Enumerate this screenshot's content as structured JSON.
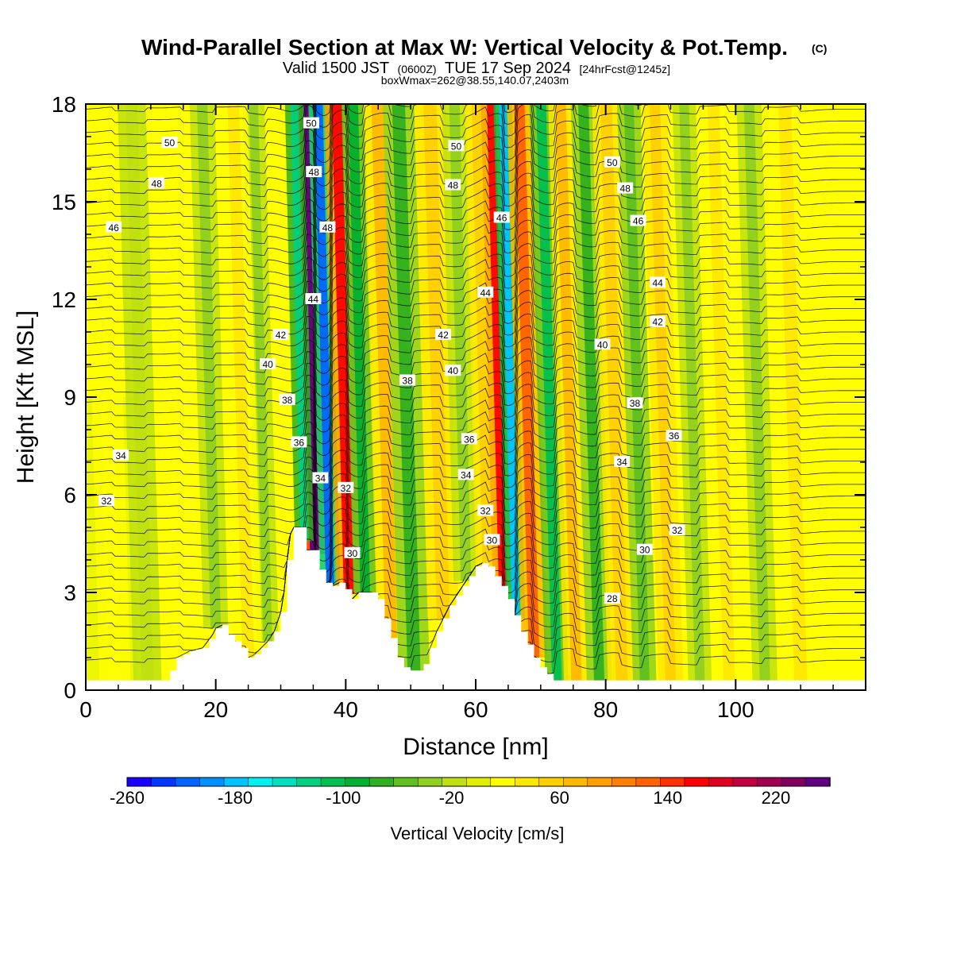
{
  "header": {
    "title": "Wind-Parallel Section at Max W: Vertical Velocity & Pot.Temp.",
    "copyright": "(C)",
    "valid_prefix": "Valid 1500 JST",
    "valid_utc": "(0600Z)",
    "valid_date": "TUE 17 Sep 2024",
    "forecast": "[24hrFcst@1245z]",
    "boxwmax": "boxWmax=262@38.55,140.07,2403m"
  },
  "chart_data": {
    "type": "heatmap",
    "title": "Wind-Parallel Section at Max W: Vertical Velocity & Pot.Temp.",
    "xlabel": "Distance [nm]",
    "ylabel": "Height [Kft MSL]",
    "xlim": [
      0,
      120
    ],
    "ylim": [
      0,
      18
    ],
    "x_ticks": [
      "0",
      "20",
      "40",
      "60",
      "80",
      "100"
    ],
    "y_ticks": [
      "0",
      "3",
      "6",
      "9",
      "12",
      "15",
      "18"
    ],
    "terrain_kft": [
      [
        0,
        0.3
      ],
      [
        4,
        0.3
      ],
      [
        8,
        0.3
      ],
      [
        12,
        0.3
      ],
      [
        13,
        0.6
      ],
      [
        14,
        1.0
      ],
      [
        16,
        1.2
      ],
      [
        18,
        1.3
      ],
      [
        19.5,
        1.7
      ],
      [
        20,
        1.9
      ],
      [
        21,
        2.0
      ],
      [
        22,
        1.7
      ],
      [
        23,
        1.5
      ],
      [
        24,
        1.3
      ],
      [
        25,
        1.0
      ],
      [
        26,
        1.1
      ],
      [
        27,
        1.3
      ],
      [
        28,
        1.5
      ],
      [
        29,
        1.8
      ],
      [
        30,
        2.4
      ],
      [
        30.5,
        3.0
      ],
      [
        31,
        4.0
      ],
      [
        31.5,
        4.8
      ],
      [
        32,
        5.0
      ],
      [
        33,
        5.0
      ],
      [
        34,
        4.3
      ],
      [
        35,
        4.3
      ],
      [
        36,
        3.7
      ],
      [
        37,
        3.3
      ],
      [
        38,
        3.2
      ],
      [
        39,
        3.3
      ],
      [
        40,
        3.1
      ],
      [
        41,
        2.8
      ],
      [
        42,
        3.0
      ],
      [
        43,
        3.0
      ],
      [
        44,
        3.0
      ],
      [
        45,
        2.8
      ],
      [
        46,
        2.2
      ],
      [
        47,
        1.6
      ],
      [
        48,
        1.0
      ],
      [
        49,
        0.7
      ],
      [
        50,
        0.6
      ],
      [
        51,
        0.6
      ],
      [
        52,
        0.8
      ],
      [
        53,
        1.3
      ],
      [
        54,
        1.8
      ],
      [
        55,
        2.2
      ],
      [
        56,
        2.6
      ],
      [
        57,
        2.9
      ],
      [
        58,
        3.2
      ],
      [
        59,
        3.5
      ],
      [
        60,
        3.8
      ],
      [
        61,
        3.9
      ],
      [
        62,
        3.8
      ],
      [
        63,
        3.5
      ],
      [
        64,
        3.2
      ],
      [
        65,
        2.8
      ],
      [
        66,
        2.3
      ],
      [
        67,
        1.8
      ],
      [
        68,
        1.4
      ],
      [
        69,
        1.0
      ],
      [
        70,
        0.7
      ],
      [
        71,
        0.5
      ],
      [
        72,
        0.3
      ],
      [
        80,
        0.3
      ],
      [
        90,
        0.3
      ],
      [
        100,
        0.3
      ],
      [
        110,
        0.3
      ],
      [
        120,
        0.3
      ]
    ],
    "vertical_velocity_bands": [
      {
        "x": 35.2,
        "width": 1.4,
        "w": 255
      },
      {
        "x": 37.6,
        "width": 1.3,
        "w": -220
      },
      {
        "x": 33.6,
        "width": 1.2,
        "w": -120
      },
      {
        "x": 40.5,
        "width": 1.6,
        "w": 170
      },
      {
        "x": 43.0,
        "width": 1.5,
        "w": -90
      },
      {
        "x": 47.0,
        "width": 1.8,
        "w": 70
      },
      {
        "x": 50.5,
        "width": 2.0,
        "w": -70
      },
      {
        "x": 55.0,
        "width": 2.0,
        "w": 50
      },
      {
        "x": 58.5,
        "width": 1.6,
        "w": -40
      },
      {
        "x": 61.8,
        "width": 1.5,
        "w": 60
      },
      {
        "x": 64.2,
        "width": 1.3,
        "w": 170
      },
      {
        "x": 66.2,
        "width": 1.2,
        "w": -180
      },
      {
        "x": 69.0,
        "width": 1.6,
        "w": 130
      },
      {
        "x": 72.5,
        "width": 1.5,
        "w": -110
      },
      {
        "x": 75.5,
        "width": 1.6,
        "w": 80
      },
      {
        "x": 79.0,
        "width": 1.6,
        "w": -70
      },
      {
        "x": 82.5,
        "width": 1.8,
        "w": 60
      },
      {
        "x": 86.0,
        "width": 1.5,
        "w": -60
      },
      {
        "x": 90.0,
        "width": 1.6,
        "w": 50
      },
      {
        "x": 94.5,
        "width": 1.5,
        "w": -40
      },
      {
        "x": 99.0,
        "width": 1.8,
        "w": 35
      },
      {
        "x": 104.5,
        "width": 1.6,
        "w": -30
      },
      {
        "x": 110.0,
        "width": 2.0,
        "w": 30
      },
      {
        "x": 28.0,
        "width": 1.4,
        "w": -40
      },
      {
        "x": 25.0,
        "width": 1.8,
        "w": 30
      },
      {
        "x": 20.0,
        "width": 1.6,
        "w": -30
      },
      {
        "x": 15.0,
        "width": 1.6,
        "w": 20
      },
      {
        "x": 9.5,
        "width": 1.8,
        "w": -20
      },
      {
        "x": 4.5,
        "width": 2.0,
        "w": 20
      }
    ],
    "theta_labels": [
      {
        "x": 12.9,
        "y": 16.8,
        "text": "50"
      },
      {
        "x": 10.9,
        "y": 15.55,
        "text": "48"
      },
      {
        "x": 4.3,
        "y": 14.2,
        "text": "46"
      },
      {
        "x": 5.4,
        "y": 7.2,
        "text": "34"
      },
      {
        "x": 3.2,
        "y": 5.8,
        "text": "32"
      },
      {
        "x": 34.7,
        "y": 17.4,
        "text": "50"
      },
      {
        "x": 35.1,
        "y": 15.9,
        "text": "48"
      },
      {
        "x": 37.2,
        "y": 14.2,
        "text": "48"
      },
      {
        "x": 35.0,
        "y": 12.0,
        "text": "44"
      },
      {
        "x": 30.0,
        "y": 10.9,
        "text": "42"
      },
      {
        "x": 28.0,
        "y": 10.0,
        "text": "40"
      },
      {
        "x": 31.0,
        "y": 8.9,
        "text": "38"
      },
      {
        "x": 32.8,
        "y": 7.6,
        "text": "36"
      },
      {
        "x": 36.1,
        "y": 6.5,
        "text": "34"
      },
      {
        "x": 40.0,
        "y": 6.2,
        "text": "32"
      },
      {
        "x": 41.0,
        "y": 4.2,
        "text": "30"
      },
      {
        "x": 57.0,
        "y": 16.7,
        "text": "50"
      },
      {
        "x": 56.5,
        "y": 15.5,
        "text": "48"
      },
      {
        "x": 64.0,
        "y": 14.5,
        "text": "46"
      },
      {
        "x": 61.5,
        "y": 12.2,
        "text": "44"
      },
      {
        "x": 55.0,
        "y": 10.9,
        "text": "42"
      },
      {
        "x": 56.5,
        "y": 9.8,
        "text": "40"
      },
      {
        "x": 49.5,
        "y": 9.5,
        "text": "38"
      },
      {
        "x": 59.0,
        "y": 7.7,
        "text": "36"
      },
      {
        "x": 58.5,
        "y": 6.6,
        "text": "34"
      },
      {
        "x": 61.5,
        "y": 5.5,
        "text": "32"
      },
      {
        "x": 62.5,
        "y": 4.6,
        "text": "30"
      },
      {
        "x": 81.0,
        "y": 16.2,
        "text": "50"
      },
      {
        "x": 83.0,
        "y": 15.4,
        "text": "48"
      },
      {
        "x": 85.0,
        "y": 14.4,
        "text": "46"
      },
      {
        "x": 88.0,
        "y": 12.5,
        "text": "44"
      },
      {
        "x": 88.0,
        "y": 11.3,
        "text": "42"
      },
      {
        "x": 79.5,
        "y": 10.6,
        "text": "40"
      },
      {
        "x": 84.5,
        "y": 8.8,
        "text": "38"
      },
      {
        "x": 90.5,
        "y": 7.8,
        "text": "36"
      },
      {
        "x": 82.5,
        "y": 7.0,
        "text": "34"
      },
      {
        "x": 91.0,
        "y": 4.9,
        "text": "32"
      },
      {
        "x": 86.0,
        "y": 4.3,
        "text": "30"
      },
      {
        "x": 81.0,
        "y": 2.8,
        "text": "28"
      }
    ],
    "colorbar": {
      "label": "Vertical Velocity [cm/s]",
      "min": -260,
      "max": 260,
      "tick_labels": [
        "-260",
        "-180",
        "-100",
        "-20",
        "60",
        "140",
        "220"
      ],
      "colors": [
        "#1a00ff",
        "#0038ff",
        "#0064ff",
        "#0090ff",
        "#00c4ff",
        "#00f0f0",
        "#00e0c0",
        "#00d080",
        "#00c050",
        "#00b030",
        "#30b020",
        "#60c020",
        "#90d020",
        "#c0e010",
        "#e0f000",
        "#ffff00",
        "#ffe800",
        "#ffd000",
        "#ffb800",
        "#ffa000",
        "#ff8000",
        "#ff6000",
        "#ff3000",
        "#ff0000",
        "#e00020",
        "#c00040",
        "#a00050",
        "#800060",
        "#600080"
      ]
    }
  }
}
